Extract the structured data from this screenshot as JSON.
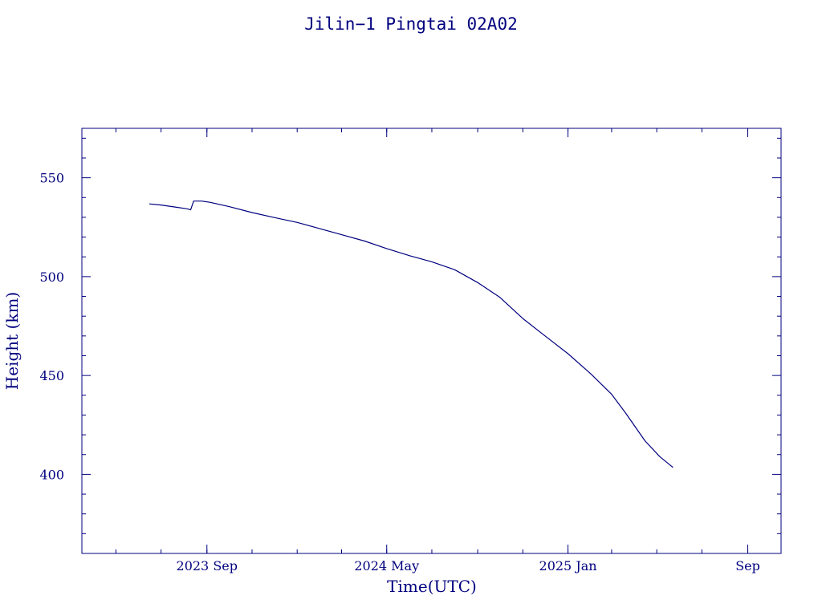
{
  "chart_data": {
    "type": "line",
    "title": "Jilin−1 Pingtai 02A02",
    "xlabel": "Time(UTC)",
    "ylabel": "Height (km)",
    "xlim": [
      "2023-03-16",
      "2025-10-16"
    ],
    "ylim": [
      360,
      575
    ],
    "x_ticks": [
      {
        "date": "2023-09-01",
        "label": "2023 Sep"
      },
      {
        "date": "2024-05-01",
        "label": "2024 May"
      },
      {
        "date": "2025-01-01",
        "label": "2025 Jan"
      },
      {
        "date": "2025-09-01",
        "label": "Sep"
      }
    ],
    "y_ticks": [
      400,
      450,
      500,
      550
    ],
    "grid": false,
    "colors": {
      "axis": "#00007f",
      "series": "#00007f",
      "background": "#ffffff"
    },
    "series": [
      {
        "points": [
          [
            "2023-06-15",
            536.8
          ],
          [
            "2023-07-01",
            536.2
          ],
          [
            "2023-07-20",
            535.2
          ],
          [
            "2023-08-05",
            534.3
          ],
          [
            "2023-08-10",
            533.8
          ],
          [
            "2023-08-14",
            538.2
          ],
          [
            "2023-08-25",
            538.2
          ],
          [
            "2023-09-05",
            537.6
          ],
          [
            "2023-10-01",
            535.4
          ],
          [
            "2023-11-01",
            532.4
          ],
          [
            "2023-12-01",
            529.9
          ],
          [
            "2024-01-01",
            527.4
          ],
          [
            "2024-02-01",
            524.2
          ],
          [
            "2024-03-01",
            521.2
          ],
          [
            "2024-04-01",
            518.0
          ],
          [
            "2024-05-01",
            514.2
          ],
          [
            "2024-06-01",
            510.6
          ],
          [
            "2024-07-01",
            507.5
          ],
          [
            "2024-08-01",
            503.5
          ],
          [
            "2024-09-01",
            497.0
          ],
          [
            "2024-10-01",
            489.5
          ],
          [
            "2024-11-01",
            478.8
          ],
          [
            "2024-12-01",
            470.0
          ],
          [
            "2025-01-01",
            461.0
          ],
          [
            "2025-02-01",
            450.8
          ],
          [
            "2025-03-01",
            440.5
          ],
          [
            "2025-03-20",
            431.0
          ],
          [
            "2025-04-15",
            417.0
          ],
          [
            "2025-05-05",
            409.0
          ],
          [
            "2025-05-23",
            403.5
          ]
        ]
      }
    ]
  }
}
